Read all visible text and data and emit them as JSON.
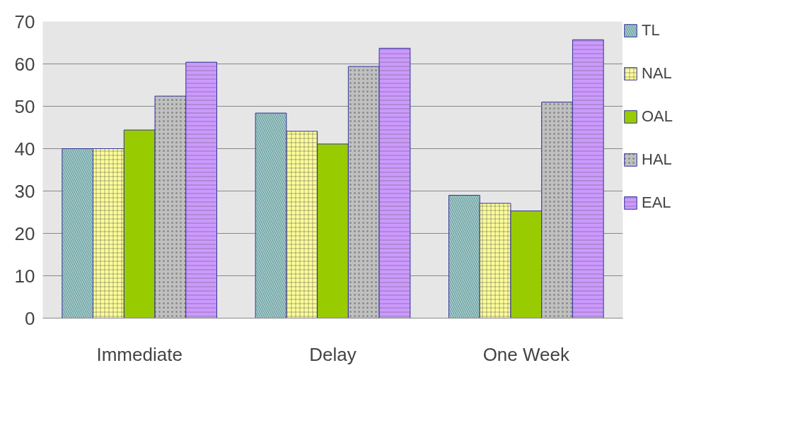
{
  "chart_data": {
    "type": "bar",
    "categories": [
      "Immediate",
      "Delay",
      "One Week"
    ],
    "series": [
      {
        "name": "TL",
        "color": "#99cccc",
        "values": [
          40,
          48.4,
          29
        ]
      },
      {
        "name": "NAL",
        "color": "#ffff99",
        "values": [
          40,
          44.1,
          27.1
        ]
      },
      {
        "name": "OAL",
        "color": "#99cc00",
        "values": [
          44.4,
          41.1,
          25.3
        ]
      },
      {
        "name": "HAL",
        "color": "#c0c0c0",
        "values": [
          52.4,
          59.4,
          51
        ]
      },
      {
        "name": "EAL",
        "color": "#cc99ff",
        "values": [
          60.4,
          63.7,
          65.7
        ]
      }
    ],
    "ylim": [
      0,
      70
    ],
    "yticks": [
      0,
      10,
      20,
      30,
      40,
      50,
      60,
      70
    ],
    "grid": "y",
    "legend": "right"
  }
}
